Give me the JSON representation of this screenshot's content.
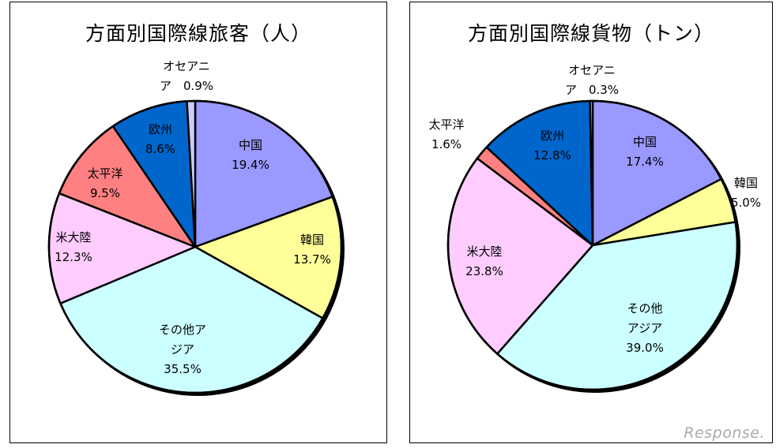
{
  "chart_data": [
    {
      "type": "pie",
      "title": "方面別国際線旅客（人）",
      "slices": [
        {
          "label_lines": [
            "中国"
          ],
          "value_label": "19.4%",
          "value": 19.4,
          "color": "#9999ff"
        },
        {
          "label_lines": [
            "韓国"
          ],
          "value_label": "13.7%",
          "value": 13.7,
          "color": "#ffff99"
        },
        {
          "label_lines": [
            "その他ア",
            "ジア"
          ],
          "value_label": "35.5%",
          "value": 35.5,
          "color": "#ccffff"
        },
        {
          "label_lines": [
            "米大陸"
          ],
          "value_label": "12.3%",
          "value": 12.3,
          "color": "#ffccff"
        },
        {
          "label_lines": [
            "太平洋"
          ],
          "value_label": "9.5%",
          "value": 9.5,
          "color": "#ff8080"
        },
        {
          "label_lines": [
            "欧州"
          ],
          "value_label": "8.6%",
          "value": 8.6,
          "color": "#0066cc"
        },
        {
          "label_lines": [
            "オセアニ",
            "ア"
          ],
          "value_label": "0.9%",
          "value": 0.9,
          "color": "#ccccff"
        }
      ]
    },
    {
      "type": "pie",
      "title": "方面別国際線貨物（トン）",
      "slices": [
        {
          "label_lines": [
            "中国"
          ],
          "value_label": "17.4%",
          "value": 17.4,
          "color": "#9999ff"
        },
        {
          "label_lines": [
            "韓国"
          ],
          "value_label": "5.0%",
          "value": 5.0,
          "color": "#ffff99"
        },
        {
          "label_lines": [
            "その他",
            "アジア"
          ],
          "value_label": "39.0%",
          "value": 39.0,
          "color": "#ccffff"
        },
        {
          "label_lines": [
            "米大陸"
          ],
          "value_label": "23.8%",
          "value": 23.8,
          "color": "#ffccff"
        },
        {
          "label_lines": [
            "太平洋"
          ],
          "value_label": "1.6%",
          "value": 1.6,
          "color": "#ff8080"
        },
        {
          "label_lines": [
            "欧州"
          ],
          "value_label": "12.8%",
          "value": 12.8,
          "color": "#0066cc"
        },
        {
          "label_lines": [
            "オセアニ",
            "ア"
          ],
          "value_label": "0.3%",
          "value": 0.3,
          "color": "#ccccff"
        }
      ]
    }
  ],
  "watermark": "Response."
}
